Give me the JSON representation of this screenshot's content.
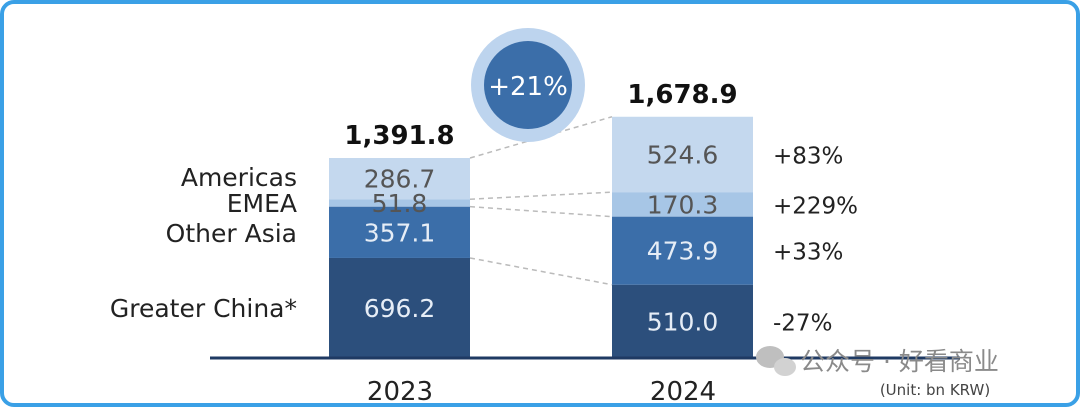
{
  "chart_data": {
    "type": "bar",
    "stacked": true,
    "categories": [
      "2023",
      "2024"
    ],
    "series": [
      {
        "name": "Greater China*",
        "values": [
          696.2,
          510.0
        ],
        "labels": [
          "696.2",
          "510.0"
        ],
        "growth": "-27%",
        "color": "#2c4f7c",
        "text_color": "#e6edf6"
      },
      {
        "name": "Other Asia",
        "values": [
          357.1,
          473.9
        ],
        "labels": [
          "357.1",
          "473.9"
        ],
        "growth": "+33%",
        "color": "#3b6ea9",
        "text_color": "#e6edf6"
      },
      {
        "name": "EMEA",
        "values": [
          51.8,
          170.3
        ],
        "labels": [
          "51.8",
          "170.3"
        ],
        "growth": "+229%",
        "color": "#a7c6e6",
        "text_color": "#555555"
      },
      {
        "name": "Americas",
        "values": [
          286.7,
          524.6
        ],
        "labels": [
          "286.7",
          "524.6"
        ],
        "growth": "+83%",
        "color": "#c4d8ee",
        "text_color": "#555555"
      }
    ],
    "totals": [
      "1,391.8",
      "1,678.9"
    ],
    "total_growth": "+21%",
    "unit": "(Unit: bn KRW)",
    "colors": {
      "axis": "#1f3a63",
      "bubble_outer": "#bdd4ee",
      "bubble_inner": "#3b6ea9",
      "connector": "#bbbbbb"
    }
  },
  "watermark": "公众号 · 好看商业"
}
